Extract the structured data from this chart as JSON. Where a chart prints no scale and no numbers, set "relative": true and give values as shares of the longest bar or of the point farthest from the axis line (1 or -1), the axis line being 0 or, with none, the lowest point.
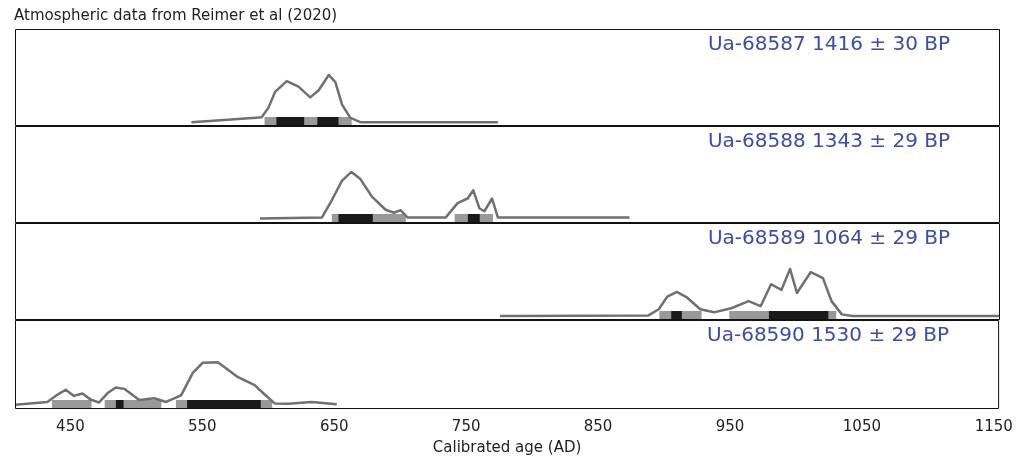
{
  "chart_data": [
    {
      "type": "line",
      "title": "Atmospheric data from Reimer et al (2020)",
      "relative": true,
      "xlim": [
        408,
        1154
      ],
      "tick_labels": false,
      "annotations": [
        "Ua-68587 1416 ± 30 BP"
      ],
      "series": [
        {
          "color": "#707070",
          "x": [
            541.6,
            574.5,
            594.8,
            600,
            605,
            613.8,
            622.7,
            631.6,
            638,
            645.6,
            650.6,
            655.7,
            662,
            669.6,
            773.7
          ],
          "values": [
            0.075,
            0.13,
            0.17,
            0.36,
            0.67,
            0.88,
            0.77,
            0.56,
            0.7,
            1,
            0.86,
            0.42,
            0.16,
            0.075,
            0.075
          ]
        }
      ],
      "bands": [
        {
          "axis": "x",
          "from": 597,
          "to": 663,
          "color": "#999999"
        },
        {
          "axis": "x",
          "from": 606,
          "to": 627,
          "color": "#1a1a1a"
        },
        {
          "axis": "x",
          "from": 637,
          "to": 653,
          "color": "#1a1a1a"
        }
      ]
    },
    {
      "type": "line",
      "relative": true,
      "xlim": [
        408,
        1154
      ],
      "tick_labels": false,
      "annotations": [
        "Ua-68588 1343 ± 29 BP"
      ],
      "series": [
        {
          "color": "#707070",
          "x": [
            593.5,
            640.5,
            648,
            655.7,
            662.8,
            669.6,
            678.5,
            688.7,
            695,
            700,
            705.2,
            734.3,
            743.2,
            750.8,
            755.1,
            759.7,
            763.5,
            769.3,
            773.7,
            873.4
          ],
          "values": [
            0.09,
            0.11,
            0.45,
            0.83,
            1,
            0.86,
            0.51,
            0.26,
            0.2,
            0.25,
            0.11,
            0.11,
            0.39,
            0.48,
            0.64,
            0.29,
            0.23,
            0.48,
            0.11,
            0.11
          ]
        }
      ],
      "bands": [
        {
          "axis": "x",
          "from": 648,
          "to": 704,
          "color": "#999999"
        },
        {
          "axis": "x",
          "from": 653,
          "to": 679,
          "color": "#1a1a1a"
        },
        {
          "axis": "x",
          "from": 741,
          "to": 770,
          "color": "#999999"
        },
        {
          "axis": "x",
          "from": 751,
          "to": 760,
          "color": "#1a1a1a"
        }
      ]
    },
    {
      "type": "line",
      "relative": true,
      "xlim": [
        408,
        1154
      ],
      "tick_labels": false,
      "annotations": [
        "Ua-68589 1064 ± 29 BP"
      ],
      "series": [
        {
          "color": "#707070",
          "x": [
            775.3,
            887.8,
            895.6,
            902.1,
            909.2,
            916.5,
            927,
            937.4,
            950.5,
            963.6,
            972.7,
            980.6,
            988.5,
            995,
            1000.2,
            1010.7,
            1019.9,
            1026.4,
            1034.2,
            1042.1,
            1154
          ],
          "values": [
            0.08,
            0.09,
            0.21,
            0.46,
            0.55,
            0.45,
            0.21,
            0.15,
            0.23,
            0.37,
            0.27,
            0.7,
            0.59,
            1,
            0.53,
            0.94,
            0.82,
            0.37,
            0.11,
            0.08,
            0.08
          ]
        }
      ],
      "bands": [
        {
          "axis": "x",
          "from": 896,
          "to": 928,
          "color": "#999999"
        },
        {
          "axis": "x",
          "from": 905,
          "to": 913,
          "color": "#1a1a1a"
        },
        {
          "axis": "x",
          "from": 949,
          "to": 1030,
          "color": "#999999"
        },
        {
          "axis": "x",
          "from": 979,
          "to": 1024,
          "color": "#1a1a1a"
        }
      ]
    },
    {
      "type": "line",
      "relative": true,
      "xlabel": "Calibrated age (AD)",
      "xlim": [
        408,
        1154
      ],
      "xticks": [
        450,
        550,
        650,
        750,
        850,
        950,
        1050,
        1150
      ],
      "tick_labels": "x",
      "annotations": [
        "Ua-68590 1530 ± 29 BP"
      ],
      "series": [
        {
          "color": "#707070",
          "x": [
            408.4,
            432.5,
            438.8,
            446.4,
            452.7,
            459.1,
            465.4,
            471.8,
            478.2,
            484.5,
            490.8,
            502.2,
            513.6,
            522.5,
            533.9,
            542.8,
            550.4,
            561.8,
            577.1,
            589.7,
            597.3,
            604.9,
            615.1,
            632.9,
            651.9
          ],
          "values": [
            0.09,
            0.15,
            0.28,
            0.41,
            0.28,
            0.33,
            0.2,
            0.14,
            0.34,
            0.46,
            0.43,
            0.19,
            0.23,
            0.15,
            0.29,
            0.77,
            0.99,
            1,
            0.68,
            0.51,
            0.31,
            0.12,
            0.11,
            0.15,
            0.1
          ]
        }
      ],
      "bands": [
        {
          "axis": "x",
          "from": 436,
          "to": 466,
          "color": "#999999"
        },
        {
          "axis": "x",
          "from": 476,
          "to": 519,
          "color": "#999999"
        },
        {
          "axis": "x",
          "from": 484.5,
          "to": 490.3,
          "color": "#1a1a1a"
        },
        {
          "axis": "x",
          "from": 530,
          "to": 603,
          "color": "#999999"
        },
        {
          "axis": "x",
          "from": 538.5,
          "to": 594.3,
          "color": "#1a1a1a"
        }
      ]
    }
  ]
}
